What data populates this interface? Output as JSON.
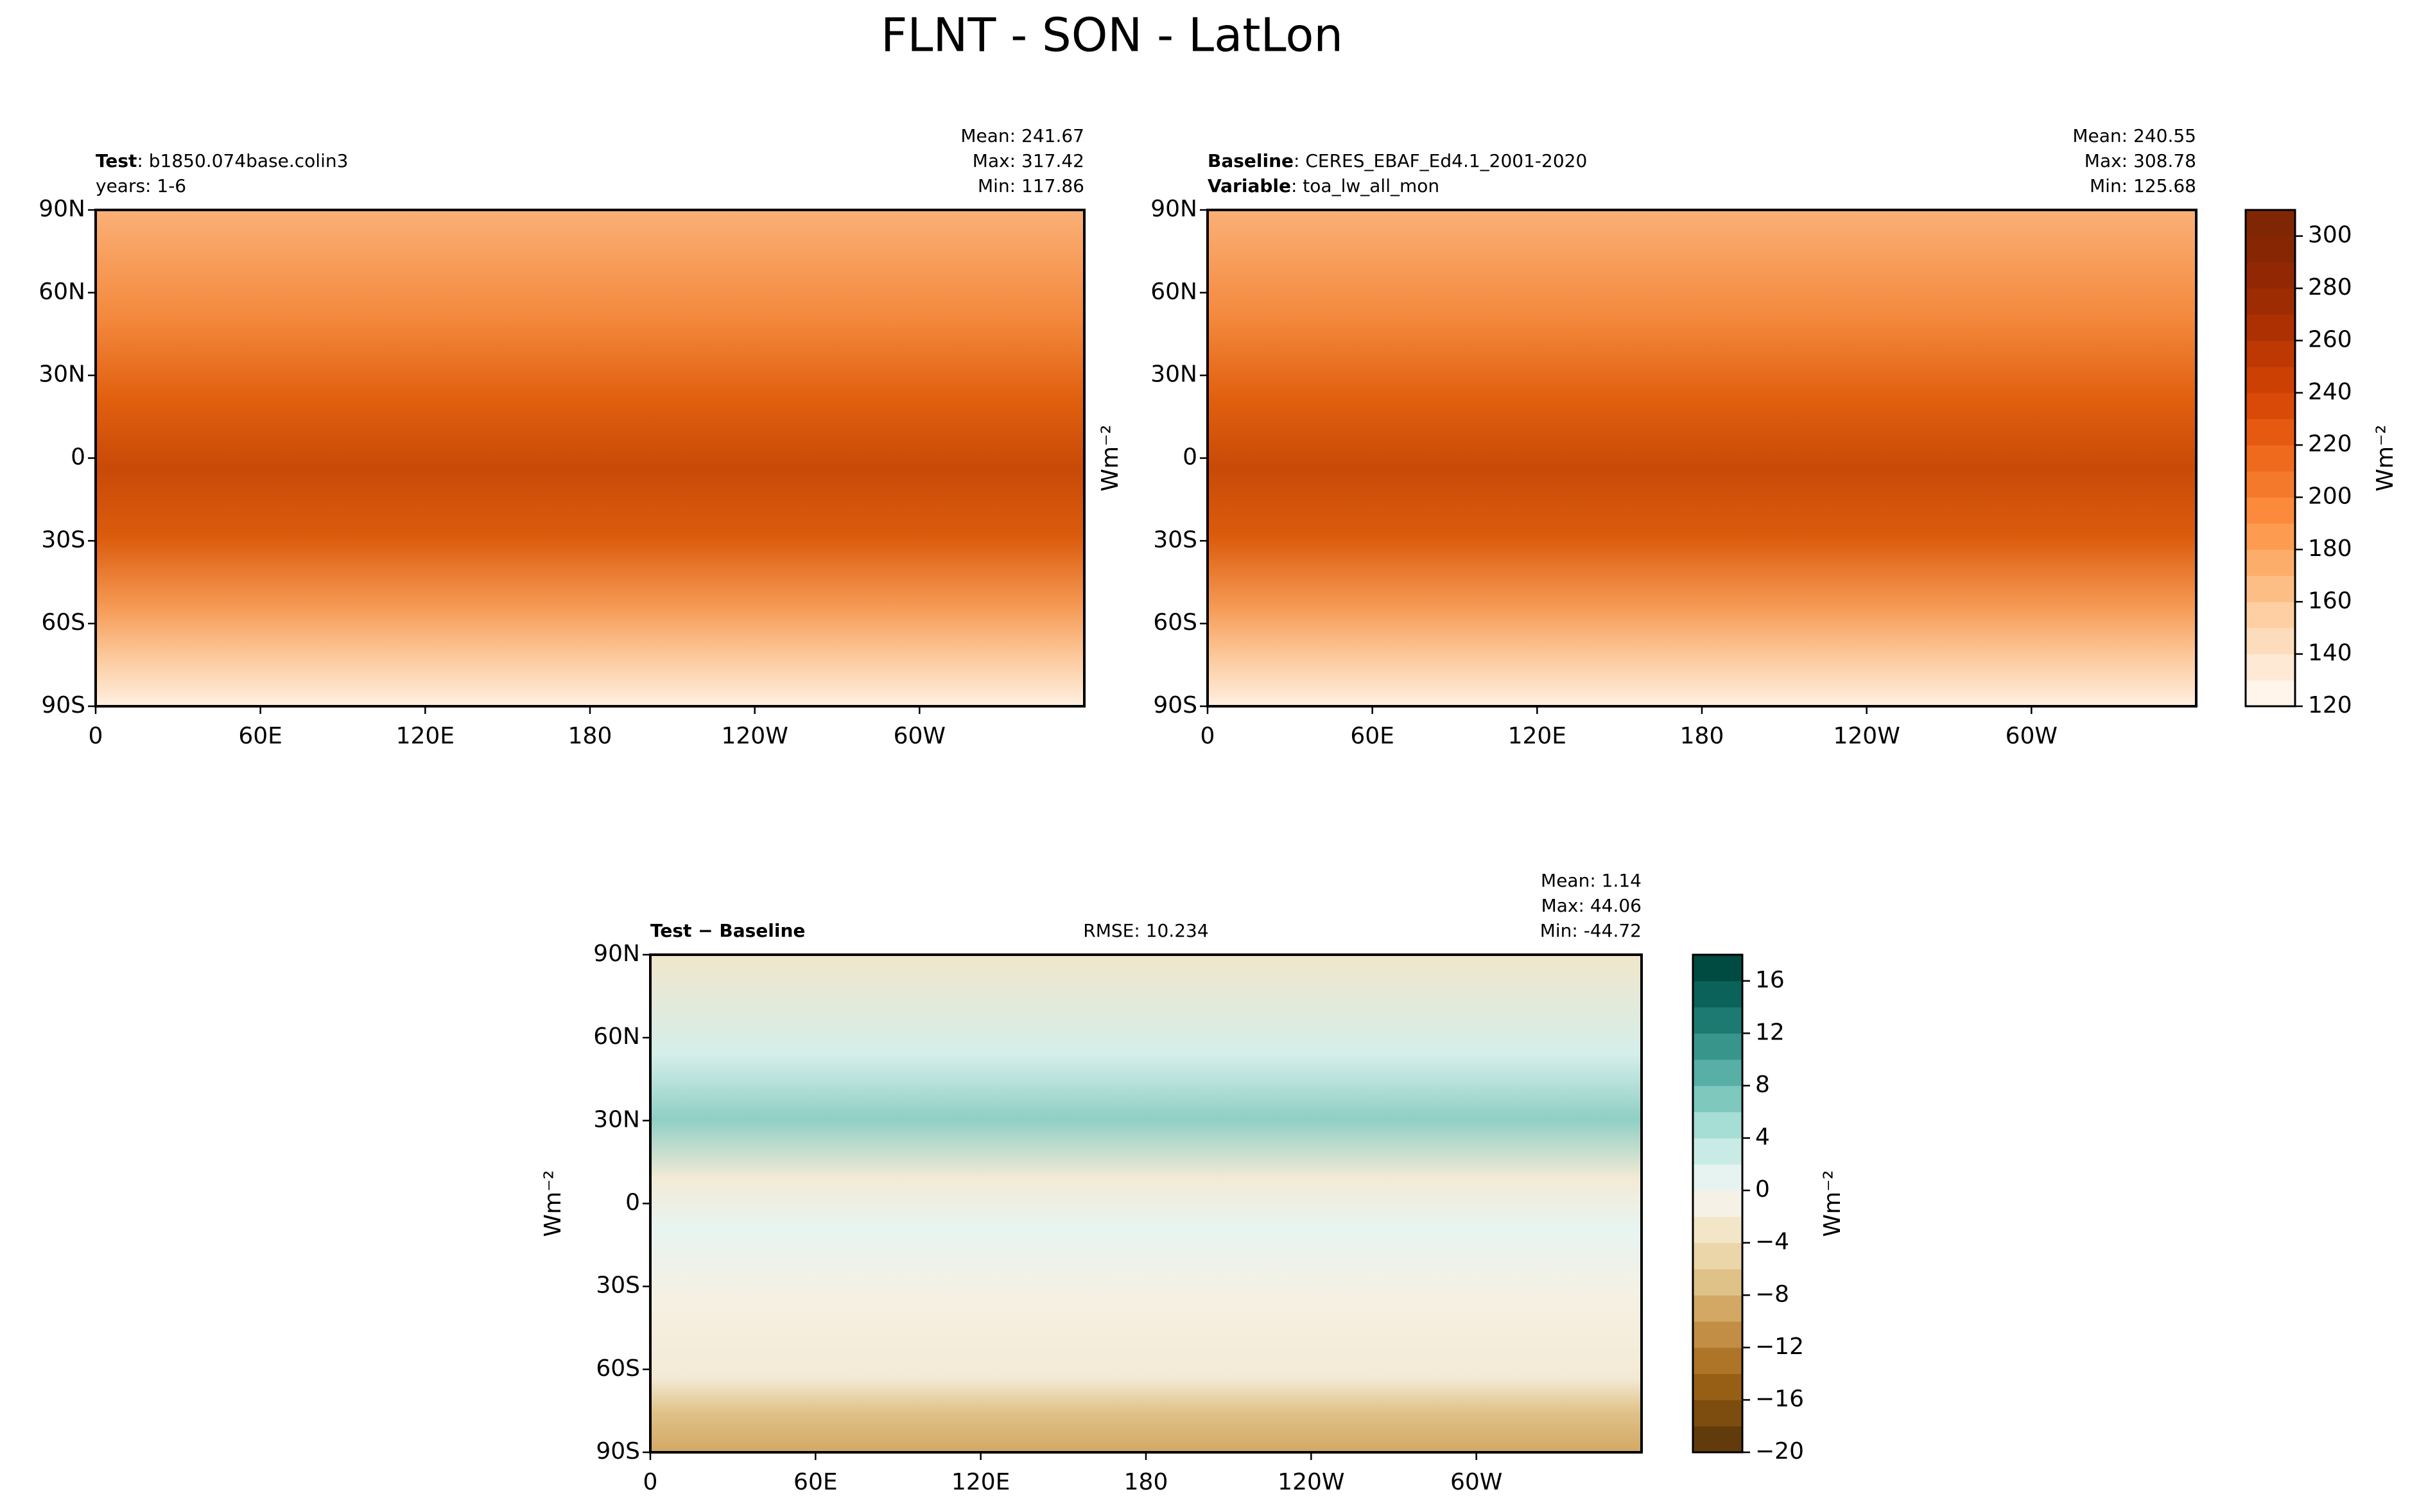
{
  "title": "FLNT - SON - LatLon",
  "chart_data": [
    {
      "type": "map",
      "header": [
        {
          "label": "Test",
          "text": ": b1850.074base.colin3"
        },
        {
          "text": "years: 1-6"
        }
      ],
      "stats": [
        "Mean: 241.67",
        "Max: 317.42",
        "Min: 117.86"
      ],
      "xlim": [
        0,
        360
      ],
      "ylim": [
        -90,
        90
      ],
      "xticks": [
        0,
        {
          "value": 60,
          "label": "60E"
        },
        {
          "value": 120,
          "label": "120E"
        },
        180,
        {
          "value": 240,
          "label": "120W"
        },
        {
          "value": 300,
          "label": "60W"
        }
      ],
      "yticks": [
        {
          "value": -90,
          "label": "90S"
        },
        {
          "value": -60,
          "label": "60S"
        },
        {
          "value": -30,
          "label": "30S"
        },
        0,
        {
          "value": 30,
          "label": "30N"
        },
        {
          "value": 60,
          "label": "60N"
        },
        {
          "value": 90,
          "label": "90N"
        }
      ],
      "palette": "orange"
    },
    {
      "type": "map",
      "header": [
        {
          "label": "Baseline",
          "text": ": CERES_EBAF_Ed4.1_2001-2020"
        },
        {
          "label": "Variable",
          "text": ": toa_lw_all_mon"
        }
      ],
      "stats": [
        "Mean: 240.55",
        "Max: 308.78",
        "Min: 125.68"
      ],
      "ylabel": "Wm⁻²",
      "xlim": [
        0,
        360
      ],
      "ylim": [
        -90,
        90
      ],
      "xticks": [
        0,
        {
          "value": 60,
          "label": "60E"
        },
        {
          "value": 120,
          "label": "120E"
        },
        180,
        {
          "value": 240,
          "label": "120W"
        },
        {
          "value": 300,
          "label": "60W"
        }
      ],
      "yticks": [
        {
          "value": -90,
          "label": "90S"
        },
        {
          "value": -60,
          "label": "60S"
        },
        {
          "value": -30,
          "label": "30S"
        },
        0,
        {
          "value": 30,
          "label": "30N"
        },
        {
          "value": 60,
          "label": "60N"
        },
        {
          "value": 90,
          "label": "90N"
        }
      ],
      "palette": "orange",
      "colorbar": {
        "label": "Wm⁻²",
        "levels": [
          120,
          130,
          140,
          150,
          160,
          170,
          180,
          190,
          200,
          210,
          220,
          230,
          240,
          250,
          260,
          270,
          280,
          290,
          300,
          310
        ],
        "colors": [
          "#fff5eb",
          "#fee9d5",
          "#fddcbd",
          "#fdcfa2",
          "#fdbe86",
          "#fdad6a",
          "#fd9c51",
          "#fb8a3c",
          "#f5792b",
          "#ef6a1c",
          "#e55a10",
          "#d94a08",
          "#cc4004",
          "#bd3803",
          "#ad3003",
          "#9e2c03",
          "#912803",
          "#862603",
          "#7f2704"
        ],
        "ticks": [
          120,
          140,
          160,
          180,
          200,
          220,
          240,
          260,
          280,
          300
        ]
      }
    },
    {
      "type": "map",
      "header": [
        {
          "label": "Test − Baseline"
        }
      ],
      "rmse": "RMSE: 10.234",
      "stats": [
        "Mean:  1.14",
        "Max: 44.06",
        "Min: -44.72"
      ],
      "ylabel": "Wm⁻²",
      "xlim": [
        0,
        360
      ],
      "ylim": [
        -90,
        90
      ],
      "xticks": [
        0,
        {
          "value": 60,
          "label": "60E"
        },
        {
          "value": 120,
          "label": "120E"
        },
        180,
        {
          "value": 240,
          "label": "120W"
        },
        {
          "value": 300,
          "label": "60W"
        }
      ],
      "yticks": [
        {
          "value": -90,
          "label": "90S"
        },
        {
          "value": -60,
          "label": "60S"
        },
        {
          "value": -30,
          "label": "30S"
        },
        0,
        {
          "value": 30,
          "label": "30N"
        },
        {
          "value": 60,
          "label": "60N"
        },
        {
          "value": 90,
          "label": "90N"
        }
      ],
      "palette": "diff",
      "colorbar": {
        "label": "Wm⁻²",
        "levels": [
          -20,
          -18,
          -16,
          -14,
          -12,
          -10,
          -8,
          -6,
          -4,
          -2,
          0,
          2,
          4,
          6,
          8,
          10,
          12,
          14,
          16,
          18
        ],
        "colors": [
          "#613b0b",
          "#7d4c0f",
          "#975f16",
          "#ae7427",
          "#c28d44",
          "#d2a864",
          "#dfc288",
          "#ead6a9",
          "#f3e6c8",
          "#f6f1e6",
          "#e6f3f1",
          "#c9ebe6",
          "#a6ddd4",
          "#7ec8be",
          "#57afa5",
          "#37958c",
          "#1c7a72",
          "#0b6259",
          "#004b41"
        ],
        "ticks": [
          {
            "value": -20,
            "label": "−20"
          },
          {
            "value": -16,
            "label": "−16"
          },
          {
            "value": -12,
            "label": "−12"
          },
          {
            "value": -8,
            "label": "−8"
          },
          {
            "value": -4,
            "label": "−4"
          },
          0,
          4,
          8,
          12,
          16
        ]
      }
    }
  ]
}
